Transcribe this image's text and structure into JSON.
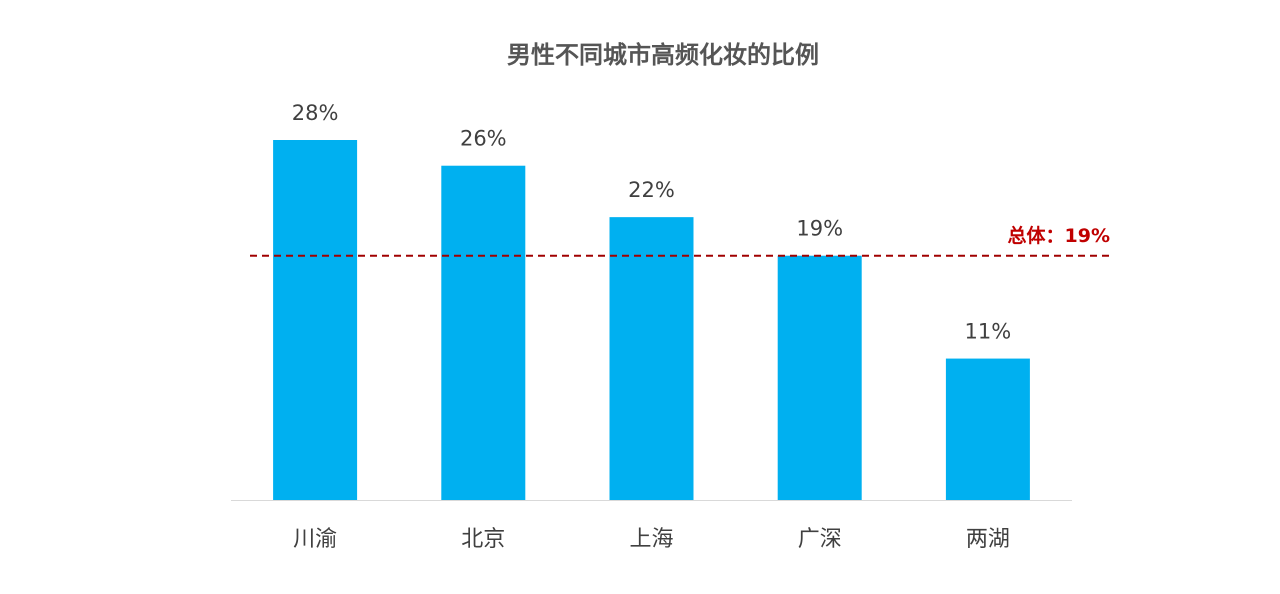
{
  "chart_data": {
    "type": "bar",
    "title": "男性不同城市高频化妆的比例",
    "categories": [
      "川渝",
      "北京",
      "上海",
      "广深",
      "两湖"
    ],
    "values": [
      28,
      26,
      22,
      19,
      11
    ],
    "value_labels": [
      "28%",
      "26%",
      "22%",
      "19%",
      "11%"
    ],
    "color": "#00b0f0",
    "ylim": [
      0,
      35
    ],
    "reference_line": {
      "value": 19,
      "label": "总体：19%",
      "color": "#a00000"
    }
  }
}
